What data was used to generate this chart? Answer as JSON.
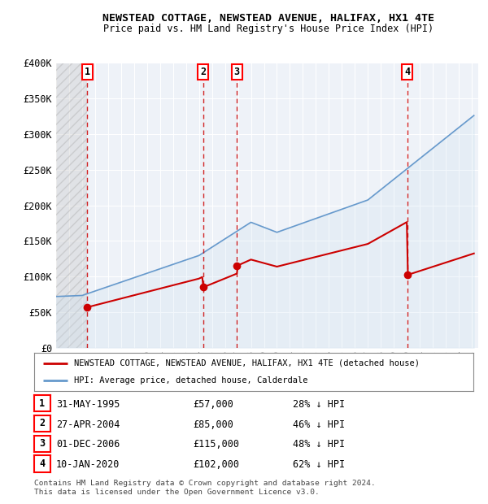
{
  "title": "NEWSTEAD COTTAGE, NEWSTEAD AVENUE, HALIFAX, HX1 4TE",
  "subtitle": "Price paid vs. HM Land Registry's House Price Index (HPI)",
  "ylim": [
    0,
    400000
  ],
  "xlim_start": 1993.0,
  "xlim_end": 2025.5,
  "yticks": [
    0,
    50000,
    100000,
    150000,
    200000,
    250000,
    300000,
    350000,
    400000
  ],
  "ytick_labels": [
    "£0",
    "£50K",
    "£100K",
    "£150K",
    "£200K",
    "£250K",
    "£300K",
    "£350K",
    "£400K"
  ],
  "sales": [
    {
      "num": 1,
      "date": "31-MAY-1995",
      "year": 1995.41,
      "price": 57000,
      "hpi_pct": "28% ↓ HPI"
    },
    {
      "num": 2,
      "date": "27-APR-2004",
      "year": 2004.32,
      "price": 85000,
      "hpi_pct": "46% ↓ HPI"
    },
    {
      "num": 3,
      "date": "01-DEC-2006",
      "year": 2006.92,
      "price": 115000,
      "hpi_pct": "48% ↓ HPI"
    },
    {
      "num": 4,
      "date": "10-JAN-2020",
      "year": 2020.03,
      "price": 102000,
      "hpi_pct": "62% ↓ HPI"
    }
  ],
  "legend_property": "NEWSTEAD COTTAGE, NEWSTEAD AVENUE, HALIFAX, HX1 4TE (detached house)",
  "legend_hpi": "HPI: Average price, detached house, Calderdale",
  "footer": "Contains HM Land Registry data © Crown copyright and database right 2024.\nThis data is licensed under the Open Government Licence v3.0.",
  "hatch_end_year": 1995.41,
  "property_color": "#cc0000",
  "hpi_color": "#6699cc",
  "hpi_fill_color": "#cce0f0",
  "background_color": "#ffffff",
  "plot_bg_color": "#eef2f8"
}
